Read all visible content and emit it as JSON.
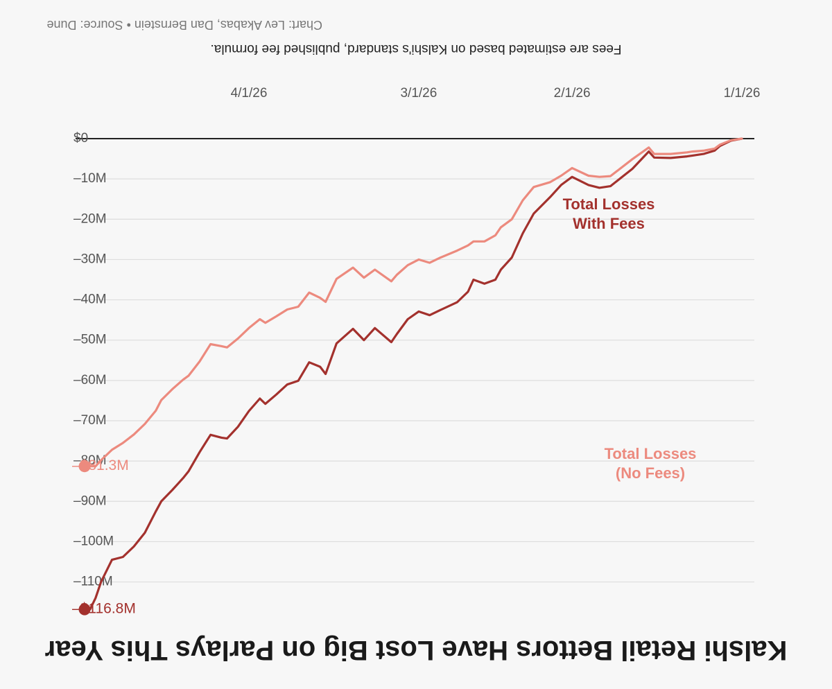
{
  "chart_data": {
    "type": "line",
    "title": "Kalshi Retail Bettors Have Lost Big on Parlays This Year",
    "note": "Fees are estimated based on Kalshi's standard, published fee formula.",
    "credit": "Chart: Lev Akabas, Dan Bernstein • Source: Dune",
    "x_tick_labels": [
      "1/1/26",
      "2/1/26",
      "3/1/26",
      "4/1/26"
    ],
    "x_tick_values": [
      0,
      31,
      59,
      90
    ],
    "x_range": [
      0,
      120
    ],
    "y_tick_labels": [
      "$0",
      "–10M",
      "–20M",
      "–30M",
      "–40M",
      "–50M",
      "–60M",
      "–70M",
      "–80M",
      "–90M",
      "–100M",
      "–110M"
    ],
    "y_tick_values": [
      0,
      -10,
      -20,
      -30,
      -40,
      -50,
      -60,
      -70,
      -80,
      -90,
      -100,
      -110
    ],
    "ylim": [
      -113,
      0
    ],
    "grid": true,
    "colors": {
      "with_fees": "#a3312d",
      "no_fees": "#ec8a7e",
      "grid": "#dddddd",
      "zero_line": "#222222"
    },
    "series": [
      {
        "key": "with_fees",
        "label_lines": [
          "Total Losses",
          "With Fees"
        ],
        "end_label": "–$116.8M",
        "x": [
          0,
          2,
          4,
          5,
          7,
          9,
          10,
          13,
          16,
          17,
          20,
          24,
          26,
          28,
          31,
          33,
          35,
          38,
          40,
          42,
          44,
          45,
          47,
          49,
          50,
          52,
          55,
          57,
          59,
          61,
          63,
          64,
          67,
          69,
          71,
          74,
          76,
          77,
          79,
          81,
          83,
          85,
          87,
          88,
          90,
          92,
          94,
          95,
          97,
          99,
          101,
          102,
          104,
          106,
          107,
          109,
          111,
          113,
          115,
          117,
          118,
          119,
          120
        ],
        "y": [
          0,
          -0.5,
          -1.8,
          -3,
          -3.8,
          -4.2,
          -4.4,
          -4.8,
          -4.7,
          -3.2,
          -7.5,
          -11.8,
          -12.2,
          -11.5,
          -9.5,
          -11.5,
          -14.5,
          -18.6,
          -23.5,
          -29.5,
          -32.5,
          -35,
          -36,
          -35,
          -38,
          -40.6,
          -42.5,
          -43.8,
          -42.9,
          -44.8,
          -48.5,
          -50.5,
          -47,
          -50,
          -47.2,
          -50.8,
          -58.4,
          -56.6,
          -55.5,
          -60.1,
          -61,
          -63.5,
          -65.8,
          -64.5,
          -67.6,
          -71.5,
          -74.4,
          -74.2,
          -73.5,
          -77.8,
          -82.5,
          -84.2,
          -87.2,
          -90,
          -92.5,
          -97.8,
          -101.2,
          -103.8,
          -104.5,
          -110,
          -114,
          -116.8,
          -116.8
        ]
      },
      {
        "key": "no_fees",
        "label_lines": [
          "Total Losses",
          "(No Fees)"
        ],
        "end_label": "–$81.3M",
        "x": [
          0,
          2,
          4,
          5,
          7,
          9,
          10,
          13,
          16,
          17,
          20,
          24,
          26,
          28,
          31,
          33,
          35,
          38,
          40,
          42,
          44,
          45,
          47,
          49,
          50,
          52,
          55,
          57,
          59,
          61,
          63,
          64,
          67,
          69,
          71,
          74,
          76,
          77,
          79,
          81,
          83,
          85,
          87,
          88,
          90,
          92,
          94,
          95,
          97,
          99,
          101,
          102,
          104,
          106,
          107,
          109,
          111,
          113,
          115,
          117,
          118,
          119,
          120
        ],
        "y": [
          0,
          -0.4,
          -1.5,
          -2.5,
          -3,
          -3.2,
          -3.4,
          -3.8,
          -3.8,
          -2.2,
          -5.1,
          -9.3,
          -9.5,
          -9.2,
          -7.3,
          -9.2,
          -10.8,
          -12,
          -15.3,
          -20,
          -22,
          -24,
          -25.5,
          -25.5,
          -26.5,
          -27.8,
          -29.5,
          -30.8,
          -30,
          -31.4,
          -33.8,
          -35.4,
          -32.5,
          -34.5,
          -32,
          -34.8,
          -40.5,
          -39.5,
          -38.2,
          -41.7,
          -42.4,
          -44.1,
          -45.7,
          -44.8,
          -47,
          -49.6,
          -51.8,
          -51.5,
          -51,
          -55.3,
          -58.8,
          -59.8,
          -62.2,
          -64.9,
          -67.5,
          -70.8,
          -73.4,
          -75.5,
          -77.2,
          -79.8,
          -81.3,
          -81.3,
          -81.3
        ]
      }
    ]
  }
}
